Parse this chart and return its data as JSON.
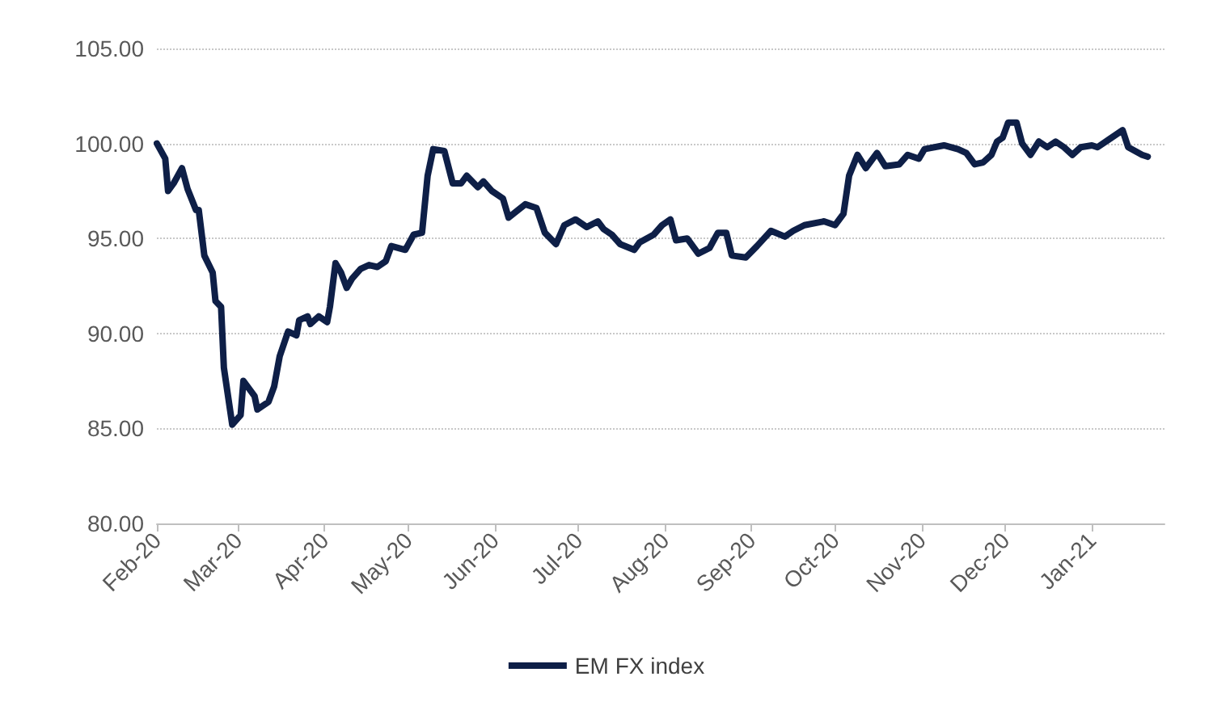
{
  "chart_data": {
    "type": "line",
    "x": [
      "2020-02-01",
      "2020-02-04",
      "2020-02-05",
      "2020-02-07",
      "2020-02-10",
      "2020-02-12",
      "2020-02-15",
      "2020-02-16",
      "2020-02-18",
      "2020-02-21",
      "2020-02-22",
      "2020-02-24",
      "2020-02-25",
      "2020-02-28",
      "2020-03-02",
      "2020-03-03",
      "2020-03-07",
      "2020-03-08",
      "2020-03-12",
      "2020-03-14",
      "2020-03-16",
      "2020-03-19",
      "2020-03-22",
      "2020-03-23",
      "2020-03-26",
      "2020-03-27",
      "2020-03-30",
      "2020-04-02",
      "2020-04-03",
      "2020-04-05",
      "2020-04-07",
      "2020-04-09",
      "2020-04-11",
      "2020-04-14",
      "2020-04-17",
      "2020-04-20",
      "2020-04-23",
      "2020-04-25",
      "2020-04-30",
      "2020-05-03",
      "2020-05-06",
      "2020-05-08",
      "2020-05-10",
      "2020-05-14",
      "2020-05-17",
      "2020-05-20",
      "2020-05-22",
      "2020-05-26",
      "2020-05-28",
      "2020-05-31",
      "2020-06-04",
      "2020-06-06",
      "2020-06-12",
      "2020-06-16",
      "2020-06-19",
      "2020-06-23",
      "2020-06-26",
      "2020-06-30",
      "2020-07-04",
      "2020-07-08",
      "2020-07-10",
      "2020-07-13",
      "2020-07-16",
      "2020-07-21",
      "2020-07-23",
      "2020-07-28",
      "2020-07-31",
      "2020-08-03",
      "2020-08-05",
      "2020-08-09",
      "2020-08-13",
      "2020-08-17",
      "2020-08-20",
      "2020-08-23",
      "2020-08-25",
      "2020-08-30",
      "2020-09-03",
      "2020-09-08",
      "2020-09-13",
      "2020-09-16",
      "2020-09-20",
      "2020-09-27",
      "2020-10-01",
      "2020-10-04",
      "2020-10-06",
      "2020-10-09",
      "2020-10-12",
      "2020-10-16",
      "2020-10-19",
      "2020-10-24",
      "2020-10-27",
      "2020-10-31",
      "2020-11-02",
      "2020-11-09",
      "2020-11-14",
      "2020-11-17",
      "2020-11-20",
      "2020-11-23",
      "2020-11-26",
      "2020-11-28",
      "2020-11-30",
      "2020-12-02",
      "2020-12-05",
      "2020-12-07",
      "2020-12-10",
      "2020-12-13",
      "2020-12-16",
      "2020-12-19",
      "2020-12-22",
      "2020-12-25",
      "2020-12-28",
      "2021-01-01",
      "2021-01-03",
      "2021-01-07",
      "2021-01-12",
      "2021-01-14",
      "2021-01-19",
      "2021-01-21"
    ],
    "series": [
      {
        "name": "EM FX index",
        "color": "#0e1f47",
        "values": [
          100.0,
          99.2,
          97.5,
          97.9,
          98.7,
          97.6,
          96.5,
          96.5,
          94.1,
          93.2,
          91.7,
          91.4,
          88.2,
          85.2,
          85.7,
          87.5,
          86.7,
          86.0,
          86.4,
          87.2,
          88.8,
          90.1,
          89.9,
          90.7,
          90.9,
          90.5,
          90.9,
          90.6,
          91.4,
          93.7,
          93.2,
          92.4,
          92.9,
          93.4,
          93.6,
          93.5,
          93.8,
          94.6,
          94.4,
          95.2,
          95.3,
          98.3,
          99.7,
          99.6,
          97.9,
          97.9,
          98.3,
          97.7,
          98.0,
          97.5,
          97.1,
          96.1,
          96.8,
          96.6,
          95.3,
          94.7,
          95.7,
          96.0,
          95.6,
          95.9,
          95.5,
          95.2,
          94.7,
          94.4,
          94.8,
          95.2,
          95.7,
          96.0,
          94.9,
          95.0,
          94.2,
          94.5,
          95.3,
          95.3,
          94.1,
          94.0,
          94.6,
          95.4,
          95.1,
          95.4,
          95.7,
          95.9,
          95.7,
          96.3,
          98.3,
          99.4,
          98.7,
          99.5,
          98.8,
          98.9,
          99.4,
          99.2,
          99.7,
          99.9,
          99.7,
          99.5,
          98.9,
          99.0,
          99.4,
          100.1,
          100.3,
          101.1,
          101.1,
          100.0,
          99.4,
          100.1,
          99.8,
          100.1,
          99.8,
          99.4,
          99.8,
          99.9,
          99.8,
          100.2,
          100.7,
          99.8,
          99.4,
          99.3
        ]
      }
    ],
    "xlim": [
      "2020-02-01",
      "2021-01-27"
    ],
    "xticks": [
      {
        "value": "2020-02-01",
        "label": "Feb-20"
      },
      {
        "value": "2020-03-01",
        "label": "Mar-20"
      },
      {
        "value": "2020-04-01",
        "label": "Apr-20"
      },
      {
        "value": "2020-05-01",
        "label": "May-20"
      },
      {
        "value": "2020-06-01",
        "label": "Jun-20"
      },
      {
        "value": "2020-07-01",
        "label": "Jul-20"
      },
      {
        "value": "2020-08-01",
        "label": "Aug-20"
      },
      {
        "value": "2020-09-01",
        "label": "Sep-20"
      },
      {
        "value": "2020-10-01",
        "label": "Oct-20"
      },
      {
        "value": "2020-11-01",
        "label": "Nov-20"
      },
      {
        "value": "2020-12-01",
        "label": "Dec-20"
      },
      {
        "value": "2021-01-01",
        "label": "Jan-21"
      }
    ],
    "ylim": [
      80,
      105
    ],
    "yticks": [
      {
        "value": 80,
        "label": "80.00"
      },
      {
        "value": 85,
        "label": "85.00"
      },
      {
        "value": 90,
        "label": "90.00"
      },
      {
        "value": 95,
        "label": "95.00"
      },
      {
        "value": 100,
        "label": "100.00"
      },
      {
        "value": 105,
        "label": "105.00"
      }
    ],
    "grid": "y",
    "legend": "bottom",
    "marker": "none",
    "line_style": "solid"
  }
}
